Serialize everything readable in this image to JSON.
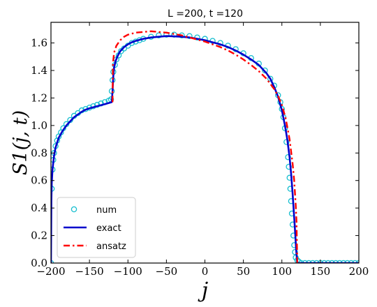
{
  "chart_data": {
    "type": "line",
    "title": "L =200, t =120",
    "xlabel": "j",
    "ylabel": "S1(j, t)",
    "xlim": [
      -200,
      200
    ],
    "ylim": [
      0.0,
      1.75
    ],
    "xticks": [
      "−200",
      "−150",
      "−100",
      "−50",
      "0",
      "50",
      "100",
      "150",
      "200"
    ],
    "xtick_values": [
      -200,
      -150,
      -100,
      -50,
      0,
      50,
      100,
      150,
      200
    ],
    "yticks": [
      "0.0",
      "0.2",
      "0.4",
      "0.6",
      "0.8",
      "1.0",
      "1.2",
      "1.4",
      "1.6"
    ],
    "ytick_values": [
      0.0,
      0.2,
      0.4,
      0.6,
      0.8,
      1.0,
      1.2,
      1.4,
      1.6
    ],
    "grid": false,
    "legend_position": "lower-left",
    "colors": {
      "num": "#17becf",
      "exact": "#0000cc",
      "ansatz": "#ff0000"
    },
    "series": [
      {
        "name": "num",
        "style": "open-circle-markers",
        "points": [
          [
            -200,
            0.0
          ],
          [
            -199,
            0.54
          ],
          [
            -198,
            0.68
          ],
          [
            -197,
            0.75
          ],
          [
            -196,
            0.8
          ],
          [
            -194,
            0.85
          ],
          [
            -192,
            0.89
          ],
          [
            -190,
            0.92
          ],
          [
            -187,
            0.95
          ],
          [
            -184,
            0.98
          ],
          [
            -180,
            1.01
          ],
          [
            -175,
            1.04
          ],
          [
            -170,
            1.07
          ],
          [
            -165,
            1.09
          ],
          [
            -160,
            1.11
          ],
          [
            -155,
            1.12
          ],
          [
            -150,
            1.13
          ],
          [
            -145,
            1.14
          ],
          [
            -140,
            1.15
          ],
          [
            -135,
            1.16
          ],
          [
            -130,
            1.17
          ],
          [
            -125,
            1.18
          ],
          [
            -122,
            1.19
          ],
          [
            -121,
            1.25
          ],
          [
            -120,
            1.33
          ],
          [
            -119,
            1.39
          ],
          [
            -117,
            1.44
          ],
          [
            -115,
            1.48
          ],
          [
            -112,
            1.51
          ],
          [
            -109,
            1.54
          ],
          [
            -105,
            1.56
          ],
          [
            -100,
            1.58
          ],
          [
            -95,
            1.6
          ],
          [
            -90,
            1.61
          ],
          [
            -85,
            1.62
          ],
          [
            -80,
            1.63
          ],
          [
            -70,
            1.645
          ],
          [
            -60,
            1.655
          ],
          [
            -50,
            1.66
          ],
          [
            -40,
            1.66
          ],
          [
            -30,
            1.655
          ],
          [
            -20,
            1.65
          ],
          [
            -10,
            1.64
          ],
          [
            0,
            1.63
          ],
          [
            10,
            1.615
          ],
          [
            20,
            1.6
          ],
          [
            30,
            1.58
          ],
          [
            40,
            1.555
          ],
          [
            50,
            1.525
          ],
          [
            60,
            1.49
          ],
          [
            70,
            1.45
          ],
          [
            78,
            1.4
          ],
          [
            85,
            1.34
          ],
          [
            90,
            1.29
          ],
          [
            95,
            1.22
          ],
          [
            98,
            1.17
          ],
          [
            100,
            1.12
          ],
          [
            102,
            1.06
          ],
          [
            104,
            0.98
          ],
          [
            106,
            0.88
          ],
          [
            108,
            0.77
          ],
          [
            109,
            0.7
          ],
          [
            110,
            0.62
          ],
          [
            111,
            0.54
          ],
          [
            112,
            0.45
          ],
          [
            113,
            0.36
          ],
          [
            114,
            0.28
          ],
          [
            115,
            0.2
          ],
          [
            116,
            0.13
          ],
          [
            117,
            0.08
          ],
          [
            118,
            0.04
          ],
          [
            120,
            0.02
          ],
          [
            122,
            0.01
          ],
          [
            125,
            0.0
          ],
          [
            130,
            0.0
          ],
          [
            135,
            0.0
          ],
          [
            140,
            0.0
          ],
          [
            145,
            0.0
          ],
          [
            150,
            0.0
          ],
          [
            155,
            0.0
          ],
          [
            160,
            0.0
          ],
          [
            165,
            0.0
          ],
          [
            170,
            0.0
          ],
          [
            175,
            0.0
          ],
          [
            180,
            0.0
          ],
          [
            185,
            0.0
          ],
          [
            190,
            0.0
          ],
          [
            195,
            0.0
          ],
          [
            200,
            0.0
          ]
        ]
      },
      {
        "name": "exact",
        "style": "solid-line",
        "points": [
          [
            -200,
            0.0
          ],
          [
            -199.5,
            0.45
          ],
          [
            -199,
            0.58
          ],
          [
            -198,
            0.68
          ],
          [
            -196,
            0.78
          ],
          [
            -194,
            0.84
          ],
          [
            -190,
            0.91
          ],
          [
            -185,
            0.96
          ],
          [
            -180,
            1.0
          ],
          [
            -175,
            1.03
          ],
          [
            -170,
            1.06
          ],
          [
            -165,
            1.08
          ],
          [
            -160,
            1.1
          ],
          [
            -155,
            1.115
          ],
          [
            -150,
            1.125
          ],
          [
            -140,
            1.14
          ],
          [
            -130,
            1.155
          ],
          [
            -121,
            1.17
          ],
          [
            -120,
            1.25
          ],
          [
            -119,
            1.36
          ],
          [
            -118,
            1.42
          ],
          [
            -116,
            1.47
          ],
          [
            -113,
            1.51
          ],
          [
            -110,
            1.54
          ],
          [
            -105,
            1.57
          ],
          [
            -100,
            1.59
          ],
          [
            -95,
            1.605
          ],
          [
            -90,
            1.615
          ],
          [
            -80,
            1.63
          ],
          [
            -70,
            1.64
          ],
          [
            -60,
            1.645
          ],
          [
            -50,
            1.65
          ],
          [
            -40,
            1.648
          ],
          [
            -30,
            1.645
          ],
          [
            -20,
            1.64
          ],
          [
            -10,
            1.63
          ],
          [
            0,
            1.62
          ],
          [
            10,
            1.605
          ],
          [
            20,
            1.59
          ],
          [
            30,
            1.57
          ],
          [
            40,
            1.545
          ],
          [
            50,
            1.515
          ],
          [
            60,
            1.48
          ],
          [
            70,
            1.44
          ],
          [
            80,
            1.38
          ],
          [
            85,
            1.34
          ],
          [
            90,
            1.28
          ],
          [
            95,
            1.21
          ],
          [
            100,
            1.11
          ],
          [
            104,
            1.0
          ],
          [
            107,
            0.9
          ],
          [
            110,
            0.77
          ],
          [
            112,
            0.65
          ],
          [
            114,
            0.5
          ],
          [
            116,
            0.33
          ],
          [
            117.5,
            0.2
          ],
          [
            118.5,
            0.1
          ],
          [
            119.5,
            0.03
          ],
          [
            120,
            0.0
          ],
          [
            200,
            0.0
          ]
        ]
      },
      {
        "name": "ansatz",
        "style": "dash-dot-line",
        "points": [
          [
            -120,
            1.17
          ],
          [
            -119.5,
            1.45
          ],
          [
            -118,
            1.53
          ],
          [
            -115,
            1.58
          ],
          [
            -110,
            1.62
          ],
          [
            -105,
            1.645
          ],
          [
            -100,
            1.66
          ],
          [
            -90,
            1.675
          ],
          [
            -80,
            1.68
          ],
          [
            -70,
            1.685
          ],
          [
            -60,
            1.68
          ],
          [
            -50,
            1.675
          ],
          [
            -40,
            1.665
          ],
          [
            -30,
            1.655
          ],
          [
            -20,
            1.64
          ],
          [
            -10,
            1.625
          ],
          [
            0,
            1.61
          ],
          [
            10,
            1.59
          ],
          [
            20,
            1.57
          ],
          [
            30,
            1.545
          ],
          [
            40,
            1.515
          ],
          [
            50,
            1.48
          ],
          [
            60,
            1.44
          ],
          [
            70,
            1.395
          ],
          [
            80,
            1.34
          ],
          [
            90,
            1.265
          ],
          [
            95,
            1.215
          ],
          [
            100,
            1.15
          ],
          [
            105,
            1.05
          ],
          [
            110,
            0.9
          ],
          [
            114,
            0.72
          ],
          [
            116,
            0.6
          ],
          [
            118,
            0.42
          ],
          [
            119,
            0.3
          ],
          [
            120,
            0.0
          ]
        ]
      }
    ]
  }
}
